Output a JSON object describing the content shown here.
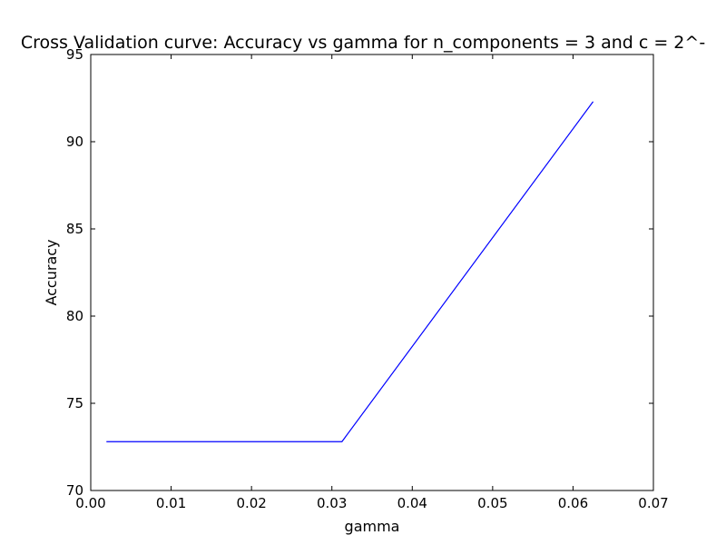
{
  "chart_data": {
    "type": "line",
    "title": "Cross Validation curve: Accuracy vs gamma for n_components = 3 and c = 2^-",
    "xlabel": "gamma",
    "ylabel": "Accuracy",
    "xlim": [
      0.0,
      0.07
    ],
    "ylim": [
      70,
      95
    ],
    "xticks": [
      0.0,
      0.01,
      0.02,
      0.03,
      0.04,
      0.05,
      0.06,
      0.07
    ],
    "xtick_labels": [
      "0.00",
      "0.01",
      "0.02",
      "0.03",
      "0.04",
      "0.05",
      "0.06",
      "0.07"
    ],
    "yticks": [
      70,
      75,
      80,
      85,
      90,
      95
    ],
    "ytick_labels": [
      "70",
      "75",
      "80",
      "85",
      "90",
      "95"
    ],
    "grid": false,
    "series": [
      {
        "color": "#0000ff",
        "x": [
          0.00195,
          0.0039,
          0.0078,
          0.0156,
          0.03125,
          0.0625
        ],
        "y": [
          72.8,
          72.8,
          72.8,
          72.8,
          72.8,
          92.3
        ]
      }
    ]
  }
}
